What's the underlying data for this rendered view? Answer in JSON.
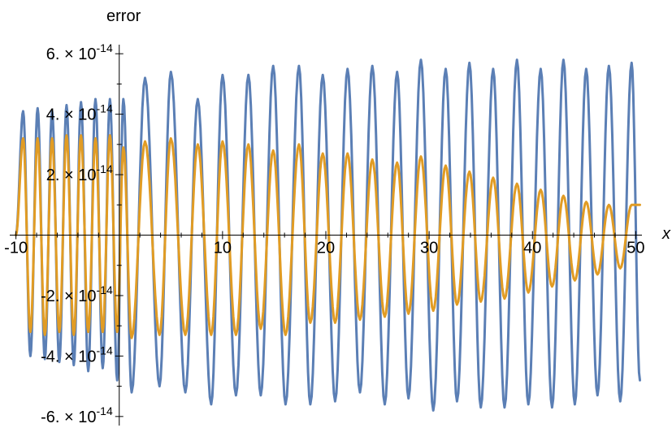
{
  "chart_data": {
    "type": "line",
    "title": "",
    "xlabel": "x",
    "ylabel": "error",
    "xlim": [
      -10.6,
      50.6
    ],
    "ylim": [
      -6.3e-14,
      6.3e-14
    ],
    "x_ticks": [
      {
        "value": -10,
        "label": "-10"
      },
      {
        "value": 10,
        "label": "10"
      },
      {
        "value": 20,
        "label": "20"
      },
      {
        "value": 30,
        "label": "30"
      },
      {
        "value": 40,
        "label": "40"
      },
      {
        "value": 50,
        "label": "50"
      }
    ],
    "y_ticks": [
      {
        "value": 6e-14,
        "mantissa": "6.",
        "exp": "-14"
      },
      {
        "value": 4e-14,
        "mantissa": "4.",
        "exp": "-14"
      },
      {
        "value": 2e-14,
        "mantissa": "2.",
        "exp": "-14"
      },
      {
        "value": -2e-14,
        "mantissa": "-2.",
        "exp": "-14"
      },
      {
        "value": -4e-14,
        "mantissa": "-4.",
        "exp": "-14"
      },
      {
        "value": -6e-14,
        "mantissa": "-6.",
        "exp": "-14"
      }
    ],
    "grid": false,
    "series": [
      {
        "color": "#5b7fb5",
        "x": [
          -10,
          -9.3,
          -8.6,
          -7.9,
          -7.2,
          -6.5,
          -5.8,
          -5.1,
          -4.4,
          -3.7,
          -3.0,
          -2.3,
          -1.6,
          -0.9,
          -0.2,
          0.4,
          1.2,
          2.5,
          3.9,
          5.0,
          6.4,
          7.6,
          8.9,
          10.0,
          11.3,
          12.5,
          13.7,
          14.9,
          16.1,
          17.4,
          18.5,
          19.7,
          20.9,
          22.1,
          23.3,
          24.5,
          25.7,
          26.9,
          28.0,
          29.2,
          30.4,
          31.6,
          32.7,
          33.9,
          35.0,
          36.2,
          37.3,
          38.5,
          39.6,
          40.8,
          41.9,
          43.0,
          44.1,
          45.2,
          46.3,
          47.4,
          48.5,
          49.6,
          50.4
        ],
        "y": [
          0,
          4.1e-14,
          -4e-14,
          4.2e-14,
          -4.1e-14,
          4.1e-14,
          -4.2e-14,
          4.3e-14,
          -4.3e-14,
          4.4e-14,
          -4.5e-14,
          4.5e-14,
          -4.4e-14,
          4.5e-14,
          -4.8e-14,
          4.5e-14,
          -5.2e-14,
          5.2e-14,
          -5e-14,
          5.4e-14,
          -5.2e-14,
          4.5e-14,
          -5.6e-14,
          5.3e-14,
          -5.3e-14,
          5.3e-14,
          -5.3e-14,
          5.6e-14,
          -5.6e-14,
          5.6e-14,
          -5.6e-14,
          5.3e-14,
          -5.5e-14,
          5.5e-14,
          -5.2e-14,
          5.6e-14,
          -5.6e-14,
          5.4e-14,
          -5.4e-14,
          5.8e-14,
          -5.8e-14,
          5.5e-14,
          -5.5e-14,
          5.7e-14,
          -5.7e-14,
          5.5e-14,
          -5.7e-14,
          5.8e-14,
          -5.6e-14,
          5.5e-14,
          -5.7e-14,
          5.8e-14,
          -5.6e-14,
          5.5e-14,
          -5.3e-14,
          5.6e-14,
          -5.5e-14,
          5.7e-14,
          -4.8e-14
        ]
      },
      {
        "color": "#e19c24",
        "x": [
          -10,
          -9.3,
          -8.6,
          -7.9,
          -7.2,
          -6.5,
          -5.8,
          -5.1,
          -4.4,
          -3.7,
          -3.0,
          -2.3,
          -1.6,
          -0.9,
          -0.2,
          0.4,
          1.2,
          2.5,
          3.9,
          5.0,
          6.4,
          7.6,
          8.9,
          10.0,
          11.3,
          12.5,
          13.7,
          14.9,
          16.1,
          17.4,
          18.5,
          19.7,
          20.9,
          22.1,
          23.3,
          24.5,
          25.7,
          26.9,
          28.0,
          29.2,
          30.4,
          31.6,
          32.7,
          33.9,
          35.0,
          36.2,
          37.3,
          38.5,
          39.6,
          40.8,
          41.9,
          43.0,
          44.1,
          45.2,
          46.3,
          47.4,
          48.5,
          49.6,
          50.4
        ],
        "y": [
          0,
          3.2e-14,
          -3.2e-14,
          3.2e-14,
          -3.3e-14,
          3.2e-14,
          -3.2e-14,
          3.3e-14,
          -3.3e-14,
          3.3e-14,
          -3.2e-14,
          3.2e-14,
          -3.2e-14,
          3.3e-14,
          -3.2e-14,
          2.9e-14,
          -3.4e-14,
          3.1e-14,
          -3.3e-14,
          3.2e-14,
          -3.3e-14,
          3e-14,
          -3.3e-14,
          3.1e-14,
          -3.3e-14,
          3e-14,
          -3.1e-14,
          2.8e-14,
          -3.3e-14,
          3e-14,
          -2.9e-14,
          2.7e-14,
          -2.9e-14,
          2.7e-14,
          -2.8e-14,
          2.5e-14,
          -2.7e-14,
          2.4e-14,
          -2.6e-14,
          2.6e-14,
          -2.5e-14,
          2.3e-14,
          -2.3e-14,
          2.1e-14,
          -2.2e-14,
          1.9e-14,
          -2.1e-14,
          1.7e-14,
          -1.9e-14,
          1.5e-14,
          -1.7e-14,
          1.3e-14,
          -1.5e-14,
          1.1e-14,
          -1.3e-14,
          1e-14,
          -1.1e-14,
          1e-14,
          1e-14
        ]
      }
    ]
  }
}
